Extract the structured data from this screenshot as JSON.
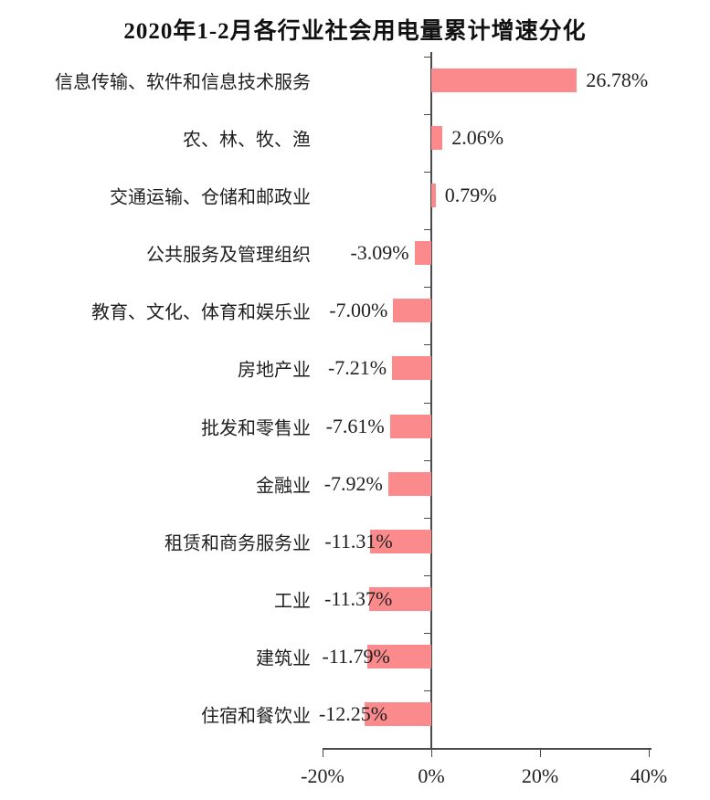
{
  "colors": {
    "bar": "#FA8A8C",
    "axis": "#4A4A4A",
    "text": "#1F1F1F",
    "background": "#FFFFFF"
  },
  "chart_data": {
    "type": "bar",
    "orientation": "horizontal",
    "title": "2020年1-2月各行业社会用电量累计增速分化",
    "unit": "%",
    "grid": "off",
    "legend": "none",
    "categories": [
      "信息传输、软件和信息技术服务",
      "农、林、牧、渔",
      "交通运输、仓储和邮政业",
      "公共服务及管理组织",
      "教育、文化、体育和娱乐业",
      "房地产业",
      "批发和零售业",
      "金融业",
      "租赁和商务服务业",
      "工业",
      "建筑业",
      "住宿和餐饮业"
    ],
    "values": [
      26.78,
      2.06,
      0.79,
      -3.09,
      -7.0,
      -7.21,
      -7.61,
      -7.92,
      -11.31,
      -11.37,
      -11.79,
      -12.25
    ],
    "value_labels": [
      "26.78%",
      "2.06%",
      "0.79%",
      "-3.09%",
      "-7.00%",
      "-7.21%",
      "-7.61%",
      "-7.92%",
      "-11.31%",
      "-11.37%",
      "-11.79%",
      "-12.25%"
    ],
    "x_axis": {
      "tick_labels": [
        "-20%",
        "0%",
        "20%",
        "40%"
      ],
      "tick_values": [
        -20,
        0,
        20,
        40
      ],
      "range": [
        -20,
        40
      ]
    }
  }
}
